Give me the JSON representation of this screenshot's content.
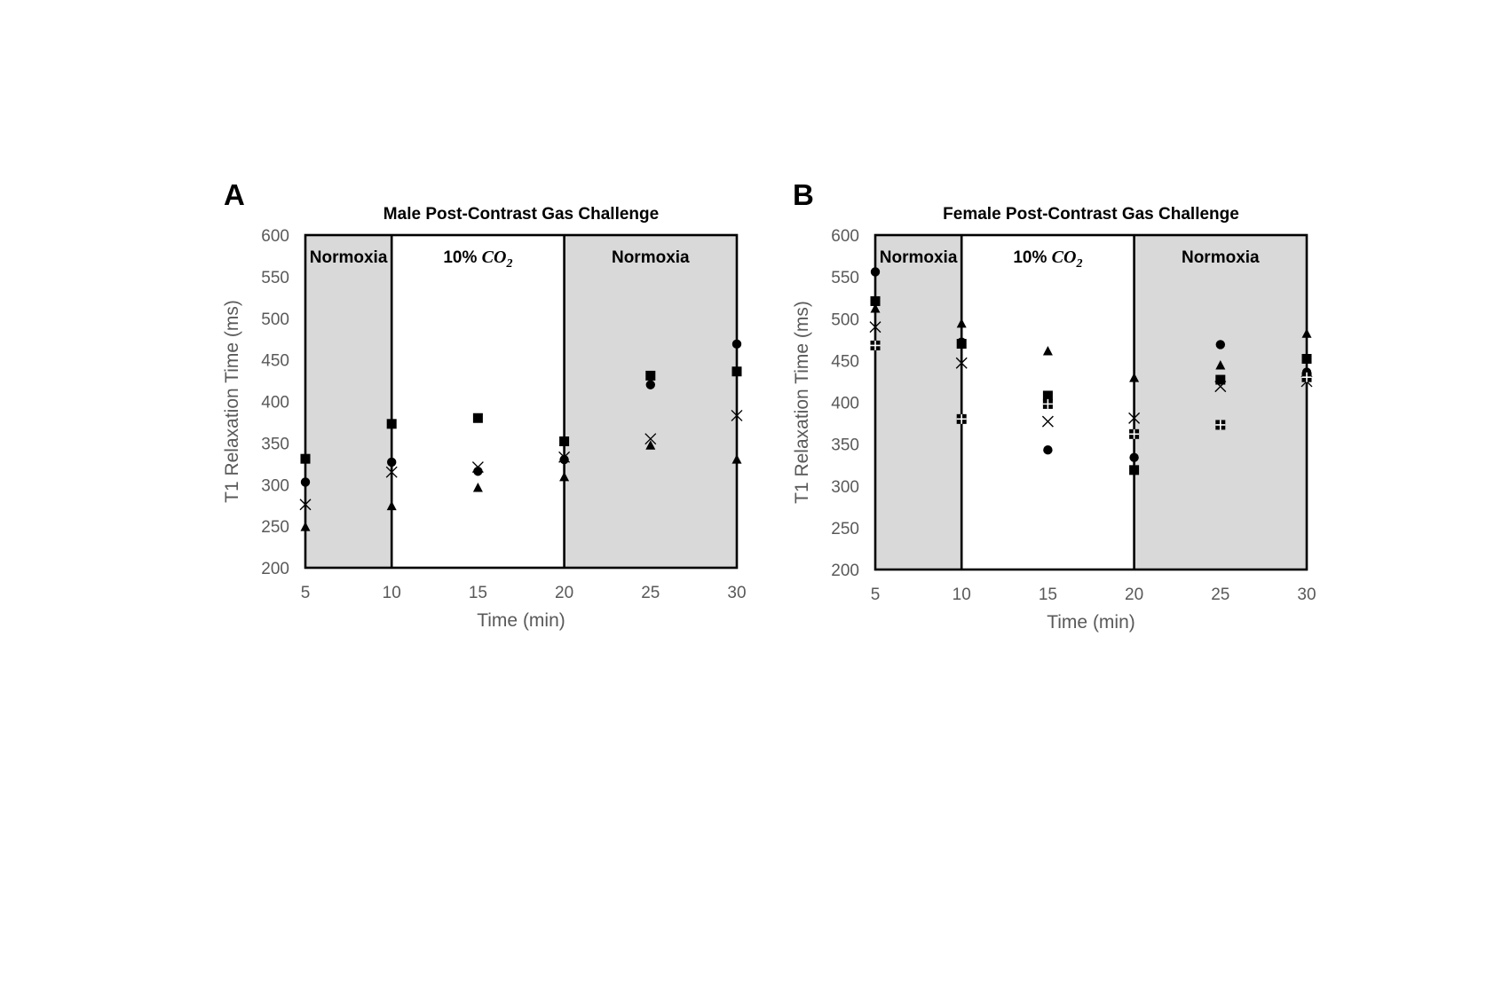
{
  "colors": {
    "shade": "#d9d9d9",
    "frame": "#000000",
    "marker": "#000000",
    "tick_text": "#595959"
  },
  "chart_data": [
    {
      "type": "scatter",
      "panel_label": "A",
      "title": "Male Post-Contrast  Gas Challenge",
      "xlabel": "Time (min)",
      "ylabel": "T1 Relaxation Time (ms)",
      "xlim": [
        5,
        30
      ],
      "ylim": [
        200,
        600
      ],
      "xticks": [
        5,
        10,
        15,
        20,
        25,
        30
      ],
      "yticks": [
        200,
        250,
        300,
        350,
        400,
        450,
        500,
        550,
        600
      ],
      "grid": false,
      "legend": "none",
      "regions": [
        {
          "from": 5,
          "to": 10,
          "shaded": true,
          "label": "Normoxia",
          "gas": ""
        },
        {
          "from": 10,
          "to": 20,
          "shaded": false,
          "label": "10%",
          "gas": "CO",
          "gas_sub": "2"
        },
        {
          "from": 20,
          "to": 30,
          "shaded": true,
          "label": "Normoxia",
          "gas": ""
        }
      ],
      "series": [
        {
          "marker": "square",
          "x": [
            5,
            10,
            15,
            20,
            25,
            30
          ],
          "y": [
            331,
            373,
            380,
            352,
            431,
            436
          ]
        },
        {
          "marker": "circle",
          "x": [
            5,
            10,
            15,
            20,
            25,
            30
          ],
          "y": [
            303,
            327,
            316,
            330,
            420,
            469
          ]
        },
        {
          "marker": "x",
          "x": [
            5,
            10,
            15,
            20,
            25,
            30
          ],
          "y": [
            276,
            315,
            321,
            333,
            355,
            383
          ]
        },
        {
          "marker": "triangle",
          "x": [
            5,
            10,
            15,
            20,
            25,
            30
          ],
          "y": [
            249,
            274,
            296,
            309,
            347,
            330
          ]
        }
      ]
    },
    {
      "type": "scatter",
      "panel_label": "B",
      "title": "Female Post-Contrast  Gas Challenge",
      "xlabel": "Time (min)",
      "ylabel": "T1 Relaxation Time (ms)",
      "xlim": [
        5,
        30
      ],
      "ylim": [
        200,
        600
      ],
      "xticks": [
        5,
        10,
        15,
        20,
        25,
        30
      ],
      "yticks": [
        200,
        250,
        300,
        350,
        400,
        450,
        500,
        550,
        600
      ],
      "grid": false,
      "legend": "none",
      "regions": [
        {
          "from": 5,
          "to": 10,
          "shaded": true,
          "label": "Normoxia",
          "gas": ""
        },
        {
          "from": 10,
          "to": 20,
          "shaded": false,
          "label": "10%",
          "gas": "CO",
          "gas_sub": "2"
        },
        {
          "from": 20,
          "to": 30,
          "shaded": true,
          "label": "Normoxia",
          "gas": ""
        }
      ],
      "series": [
        {
          "marker": "square",
          "x": [
            5,
            10,
            15,
            20,
            25,
            30
          ],
          "y": [
            521,
            470,
            408,
            319,
            427,
            452
          ]
        },
        {
          "marker": "circle",
          "x": [
            5,
            10,
            15,
            20,
            25,
            30
          ],
          "y": [
            556,
            472,
            343,
            334,
            469,
            436
          ]
        },
        {
          "marker": "x",
          "x": [
            5,
            10,
            15,
            20,
            25,
            30
          ],
          "y": [
            490,
            447,
            377,
            381,
            419,
            425
          ]
        },
        {
          "marker": "triangle",
          "x": [
            5,
            10,
            15,
            20,
            25,
            30
          ],
          "y": [
            512,
            494,
            461,
            429,
            444,
            482
          ]
        },
        {
          "marker": "cross-square",
          "x": [
            5,
            10,
            15,
            20,
            25,
            30
          ],
          "y": [
            468,
            380,
            398,
            362,
            373,
            430
          ]
        }
      ]
    }
  ]
}
